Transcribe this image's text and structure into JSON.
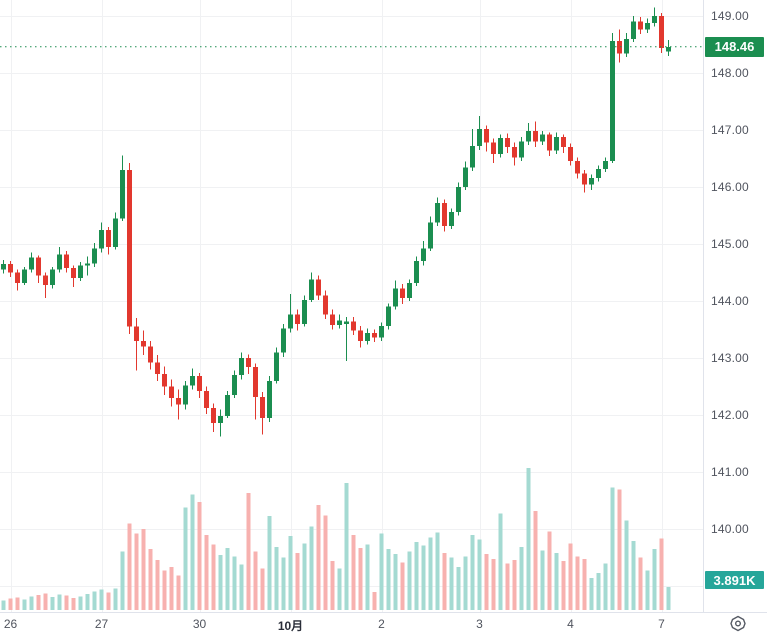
{
  "last_price_label": "148.46",
  "last_volume_label": "3.891K",
  "colors": {
    "background": "#ffffff",
    "up": "#1b8e50",
    "down": "#e2382e",
    "volume_up": "#a4dad2",
    "volume_down": "#f7b1af",
    "price_badge_bg": "#1b8e50",
    "volume_badge_bg": "#26a69a",
    "grid": "#f0f1f3",
    "separator": "#e0e3eb",
    "axis_text": "#50545e",
    "axis_text_bold": "#2a2e39",
    "dotted_line": "#1b8e50",
    "icon_stroke": "#555a64"
  },
  "price_axis": {
    "tick_values": [
      149,
      148,
      147,
      146,
      145,
      144,
      143,
      142,
      141,
      140
    ],
    "tick_labels": [
      "149.00",
      "148.00",
      "147.00",
      "146.00",
      "145.00",
      "144.00",
      "143.00",
      "142.00",
      "141.00",
      "140.00"
    ],
    "grid_values": [
      149,
      148,
      147,
      146,
      145,
      144,
      143,
      142,
      141,
      140,
      139
    ]
  },
  "time_axis": {
    "ticks": [
      {
        "label": "26",
        "index": 1,
        "bold": false
      },
      {
        "label": "27",
        "index": 14,
        "bold": false
      },
      {
        "label": "30",
        "index": 28,
        "bold": false
      },
      {
        "label": "10月",
        "index": 41,
        "bold": true
      },
      {
        "label": "2",
        "index": 54,
        "bold": false
      },
      {
        "label": "3",
        "index": 68,
        "bold": false
      },
      {
        "label": "4",
        "index": 81,
        "bold": false
      },
      {
        "label": "7",
        "index": 94,
        "bold": false
      }
    ]
  },
  "chart_data": {
    "type": "candlestick_with_volume",
    "title": "",
    "interval": "30m bars, Sep 26 - Oct 7",
    "price_range_visible": [
      139.0,
      149.3
    ],
    "last_price": 148.46,
    "last_volume_k": 3.891,
    "ohlc": [
      [
        144.55,
        144.72,
        144.48,
        144.65
      ],
      [
        144.65,
        144.7,
        144.42,
        144.5
      ],
      [
        144.5,
        144.55,
        144.18,
        144.32
      ],
      [
        144.32,
        144.6,
        144.28,
        144.55
      ],
      [
        144.55,
        144.85,
        144.5,
        144.76
      ],
      [
        144.76,
        144.8,
        144.32,
        144.45
      ],
      [
        144.45,
        144.5,
        144.05,
        144.28
      ],
      [
        144.28,
        144.6,
        144.22,
        144.55
      ],
      [
        144.55,
        144.95,
        144.5,
        144.82
      ],
      [
        144.82,
        144.88,
        144.5,
        144.58
      ],
      [
        144.58,
        144.62,
        144.25,
        144.4
      ],
      [
        144.4,
        144.68,
        144.35,
        144.62
      ],
      [
        144.62,
        144.78,
        144.45,
        144.66
      ],
      [
        144.66,
        145.02,
        144.6,
        144.92
      ],
      [
        144.92,
        145.38,
        144.85,
        145.25
      ],
      [
        145.25,
        145.3,
        144.82,
        144.95
      ],
      [
        144.95,
        145.55,
        144.9,
        145.45
      ],
      [
        145.45,
        146.55,
        145.4,
        146.3
      ],
      [
        146.3,
        146.42,
        143.42,
        143.55
      ],
      [
        143.55,
        143.7,
        142.78,
        143.3
      ],
      [
        143.3,
        143.48,
        143.05,
        143.2
      ],
      [
        143.2,
        143.3,
        142.8,
        142.92
      ],
      [
        142.92,
        143.05,
        142.6,
        142.72
      ],
      [
        142.72,
        142.85,
        142.35,
        142.5
      ],
      [
        142.5,
        142.62,
        142.15,
        142.3
      ],
      [
        142.3,
        142.45,
        141.92,
        142.18
      ],
      [
        142.18,
        142.6,
        142.1,
        142.52
      ],
      [
        142.52,
        142.82,
        142.45,
        142.68
      ],
      [
        142.68,
        142.74,
        142.3,
        142.42
      ],
      [
        142.42,
        142.5,
        142.02,
        142.12
      ],
      [
        142.12,
        142.2,
        141.7,
        141.86
      ],
      [
        141.86,
        142.1,
        141.62,
        141.98
      ],
      [
        141.98,
        142.42,
        141.95,
        142.35
      ],
      [
        142.35,
        142.78,
        142.3,
        142.7
      ],
      [
        142.7,
        143.1,
        142.62,
        143.0
      ],
      [
        143.0,
        143.06,
        142.72,
        142.84
      ],
      [
        142.84,
        142.9,
        141.92,
        142.32
      ],
      [
        142.32,
        142.4,
        141.66,
        141.95
      ],
      [
        141.95,
        142.68,
        141.88,
        142.6
      ],
      [
        142.6,
        143.18,
        142.55,
        143.1
      ],
      [
        143.1,
        143.6,
        143.02,
        143.52
      ],
      [
        143.52,
        144.12,
        143.45,
        143.76
      ],
      [
        143.76,
        143.85,
        143.48,
        143.6
      ],
      [
        143.6,
        144.1,
        143.55,
        144.02
      ],
      [
        144.02,
        144.5,
        143.98,
        144.38
      ],
      [
        144.38,
        144.45,
        144.02,
        144.1
      ],
      [
        144.1,
        144.18,
        143.68,
        143.76
      ],
      [
        143.76,
        143.85,
        143.5,
        143.58
      ],
      [
        143.58,
        143.76,
        143.52,
        143.66
      ],
      [
        143.6,
        143.72,
        142.95,
        143.64
      ],
      [
        143.64,
        143.72,
        143.4,
        143.48
      ],
      [
        143.48,
        143.56,
        143.18,
        143.3
      ],
      [
        143.3,
        143.52,
        143.24,
        143.44
      ],
      [
        143.44,
        143.5,
        143.28,
        143.36
      ],
      [
        143.36,
        143.62,
        143.3,
        143.56
      ],
      [
        143.56,
        143.96,
        143.5,
        143.9
      ],
      [
        143.9,
        144.36,
        143.85,
        144.22
      ],
      [
        144.22,
        144.3,
        143.95,
        144.05
      ],
      [
        144.05,
        144.38,
        144.0,
        144.32
      ],
      [
        144.32,
        144.78,
        144.26,
        144.7
      ],
      [
        144.7,
        145.05,
        144.62,
        144.92
      ],
      [
        144.92,
        145.48,
        144.88,
        145.38
      ],
      [
        145.38,
        145.82,
        145.32,
        145.72
      ],
      [
        145.72,
        145.78,
        145.22,
        145.32
      ],
      [
        145.32,
        145.62,
        145.26,
        145.56
      ],
      [
        145.56,
        146.08,
        145.5,
        146.0
      ],
      [
        146.0,
        146.45,
        145.95,
        146.34
      ],
      [
        146.34,
        147.02,
        146.28,
        146.72
      ],
      [
        146.72,
        147.25,
        146.65,
        147.02
      ],
      [
        147.02,
        147.08,
        146.62,
        146.78
      ],
      [
        146.78,
        146.85,
        146.42,
        146.58
      ],
      [
        146.58,
        146.92,
        146.52,
        146.86
      ],
      [
        146.86,
        146.94,
        146.6,
        146.7
      ],
      [
        146.7,
        146.78,
        146.38,
        146.52
      ],
      [
        146.52,
        146.88,
        146.46,
        146.8
      ],
      [
        146.8,
        147.12,
        146.74,
        146.98
      ],
      [
        146.98,
        147.15,
        146.7,
        146.8
      ],
      [
        146.8,
        146.98,
        146.74,
        146.92
      ],
      [
        146.92,
        146.96,
        146.54,
        146.64
      ],
      [
        146.64,
        146.96,
        146.58,
        146.88
      ],
      [
        146.88,
        146.92,
        146.6,
        146.7
      ],
      [
        146.7,
        146.76,
        146.38,
        146.46
      ],
      [
        146.46,
        146.52,
        146.15,
        146.24
      ],
      [
        146.24,
        146.3,
        145.9,
        146.04
      ],
      [
        146.04,
        146.22,
        145.95,
        146.16
      ],
      [
        146.16,
        146.38,
        146.1,
        146.32
      ],
      [
        146.32,
        146.52,
        146.26,
        146.46
      ],
      [
        146.46,
        148.7,
        146.42,
        148.56
      ],
      [
        148.56,
        148.76,
        148.18,
        148.34
      ],
      [
        148.34,
        148.7,
        148.28,
        148.6
      ],
      [
        148.6,
        149.0,
        148.54,
        148.9
      ],
      [
        148.9,
        148.98,
        148.68,
        148.76
      ],
      [
        148.76,
        148.96,
        148.7,
        148.88
      ],
      [
        148.88,
        149.15,
        148.82,
        149.0
      ],
      [
        149.0,
        149.05,
        148.35,
        148.44
      ],
      [
        148.38,
        148.58,
        148.3,
        148.46
      ]
    ],
    "volumes_k": [
      1.6,
      1.9,
      2.1,
      1.8,
      2.3,
      2.5,
      2.8,
      2.2,
      2.6,
      2.4,
      2.0,
      2.3,
      2.7,
      3.1,
      3.4,
      2.9,
      3.6,
      9.8,
      14.5,
      12.8,
      13.6,
      10.2,
      8.4,
      6.6,
      7.2,
      5.8,
      17.2,
      19.4,
      18.1,
      12.6,
      11.0,
      9.2,
      10.4,
      9.0,
      7.6,
      19.6,
      9.8,
      7.0,
      15.8,
      10.6,
      8.8,
      12.4,
      9.6,
      11.2,
      14.0,
      17.6,
      15.9,
      8.2,
      7.0,
      21.3,
      12.6,
      10.4,
      11.0,
      3.0,
      12.8,
      10.2,
      9.4,
      8.0,
      9.8,
      11.4,
      10.8,
      12.2,
      13.0,
      9.6,
      8.8,
      7.2,
      9.0,
      12.6,
      11.8,
      9.4,
      8.6,
      16.2,
      7.8,
      8.4,
      10.6,
      23.8,
      16.6,
      10.0,
      13.2,
      9.6,
      8.2,
      11.2,
      9.0,
      8.6,
      5.4,
      6.2,
      7.8,
      20.6,
      20.2,
      15.0,
      11.6,
      8.8,
      6.6,
      10.2,
      12.0,
      3.891
    ]
  }
}
